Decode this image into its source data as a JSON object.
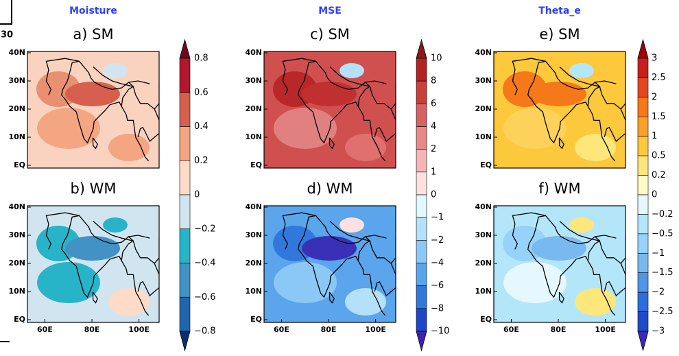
{
  "corner_label": "30",
  "lat_labels": [
    "40N",
    "30N",
    "20N",
    "10N",
    "EQ"
  ],
  "lon_labels": [
    "60E",
    "80E",
    "100E"
  ],
  "columns": [
    {
      "title": "Moisture",
      "colorbar": {
        "labels": [
          "0.8",
          "0.6",
          "0.4",
          "0.2",
          "0",
          "−0.2",
          "−0.4",
          "−0.6",
          "−0.8"
        ],
        "colors": [
          "#6b0a1f",
          "#b2182b",
          "#d6604d",
          "#f4a582",
          "#fddbc7",
          "#d1e5f0",
          "#28b4c8",
          "#4292c6",
          "#2166ac",
          "#08306b"
        ]
      },
      "panels": [
        {
          "label": "a) SM",
          "base": "#f9d3c0",
          "blobs": [
            "#e89070",
            "#d6604d",
            "#f4a582",
            "#f4a582",
            "#d1e5f0"
          ]
        },
        {
          "label": "b) WM",
          "base": "#d1e5f0",
          "blobs": [
            "#28b4c8",
            "#4292c6",
            "#28b4c8",
            "#fddbc7",
            "#28b4c8"
          ]
        }
      ]
    },
    {
      "title": "MSE",
      "colorbar": {
        "labels": [
          "10",
          "8",
          "6",
          "4",
          "2",
          "1",
          "0",
          "−1",
          "−2",
          "−4",
          "−6",
          "−8",
          "−10"
        ],
        "colors": [
          "#8b1a1a",
          "#b42222",
          "#c8403a",
          "#d66262",
          "#e88888",
          "#f4b6b6",
          "#fde0e0",
          "#e0f8ff",
          "#b4e0fa",
          "#8cc8f5",
          "#5aa5eb",
          "#3278dc",
          "#1e46c8",
          "#4020b0"
        ]
      },
      "panels": [
        {
          "label": "c) SM",
          "base": "#d05050",
          "blobs": [
            "#b82828",
            "#c03030",
            "#e08080",
            "#e07070",
            "#b4e0fa"
          ]
        },
        {
          "label": "d) WM",
          "base": "#5aa5eb",
          "blobs": [
            "#3278dc",
            "#3a30b8",
            "#8cc8f5",
            "#b4e0fa",
            "#fde0e0"
          ]
        }
      ]
    },
    {
      "title": "Theta_e",
      "colorbar": {
        "labels": [
          "3",
          "2.5",
          "2",
          "1.5",
          "1",
          "0.5",
          "0.2",
          "0",
          "−0.2",
          "−0.5",
          "−1",
          "−1.5",
          "−2",
          "−2.5",
          "−3"
        ],
        "colors": [
          "#a00000",
          "#c81e1e",
          "#e6461e",
          "#f57819",
          "#faa028",
          "#fcc83c",
          "#fde67a",
          "#fffac8",
          "#e6f8ff",
          "#b4e6fa",
          "#96d2fa",
          "#78b9f0",
          "#5096e6",
          "#2d6edc",
          "#1e4bc8",
          "#3c28b4"
        ]
      },
      "panels": [
        {
          "label": "e) SM",
          "base": "#fcc83c",
          "blobs": [
            "#f57819",
            "#f57819",
            "#fcd25a",
            "#fde67a",
            "#b4e6fa"
          ]
        },
        {
          "label": "f) WM",
          "base": "#b4e6fa",
          "blobs": [
            "#96d2fa",
            "#78b9f0",
            "#e6f8ff",
            "#fde67a",
            "#fde67a"
          ]
        }
      ]
    }
  ]
}
